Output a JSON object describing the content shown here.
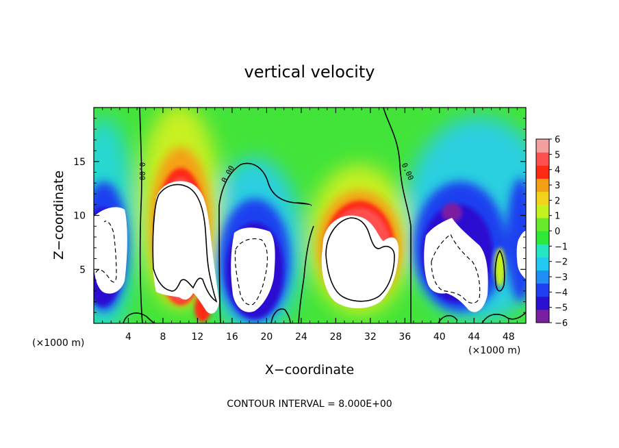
{
  "chart_data": {
    "type": "heatmap",
    "title": "vertical velocity",
    "xlabel": "X−coordinate",
    "ylabel": "Z−coordinate",
    "x_unit_left": "(×1000 m)",
    "x_unit_right": "(×1000 m)",
    "xlim": [
      0,
      50
    ],
    "ylim": [
      0,
      20
    ],
    "x_ticks": [
      4,
      8,
      12,
      16,
      20,
      24,
      28,
      32,
      36,
      40,
      44,
      48
    ],
    "y_ticks": [
      5,
      10,
      15
    ],
    "colorbar": {
      "ticks": [
        "6",
        "5",
        "4",
        "3",
        "2",
        "1",
        "0",
        "−1",
        "−2",
        "−3",
        "−4",
        "−5",
        "−6"
      ],
      "range": [
        -6,
        6
      ],
      "colors": [
        "#7a1fa0",
        "#2a0fd0",
        "#1f3ff0",
        "#1f8ef5",
        "#22c8f0",
        "#25e6c0",
        "#2ee83a",
        "#66ea2a",
        "#c4f21e",
        "#f2d21a",
        "#f5a014",
        "#ff2a14",
        "#ff5050",
        "#f2a0a0"
      ]
    },
    "contour_label": "0.00",
    "footer": "CONTOUR INTERVAL = 8.000E+00",
    "updrafts": [
      {
        "x": 10.5,
        "z": 7.5,
        "w_max": 6
      },
      {
        "x": 13.0,
        "z": 2.0,
        "w_max": 6
      },
      {
        "x": 30.0,
        "z": 6.0,
        "w_max": 6
      }
    ],
    "downdrafts": [
      {
        "x": 1.5,
        "z": 6.5,
        "w_min": -6
      },
      {
        "x": 19.0,
        "z": 5.5,
        "w_min": -6
      },
      {
        "x": 42.5,
        "z": 5.5,
        "w_min": -6
      },
      {
        "x": 49.5,
        "z": 6.0,
        "w_min": -6
      }
    ]
  }
}
